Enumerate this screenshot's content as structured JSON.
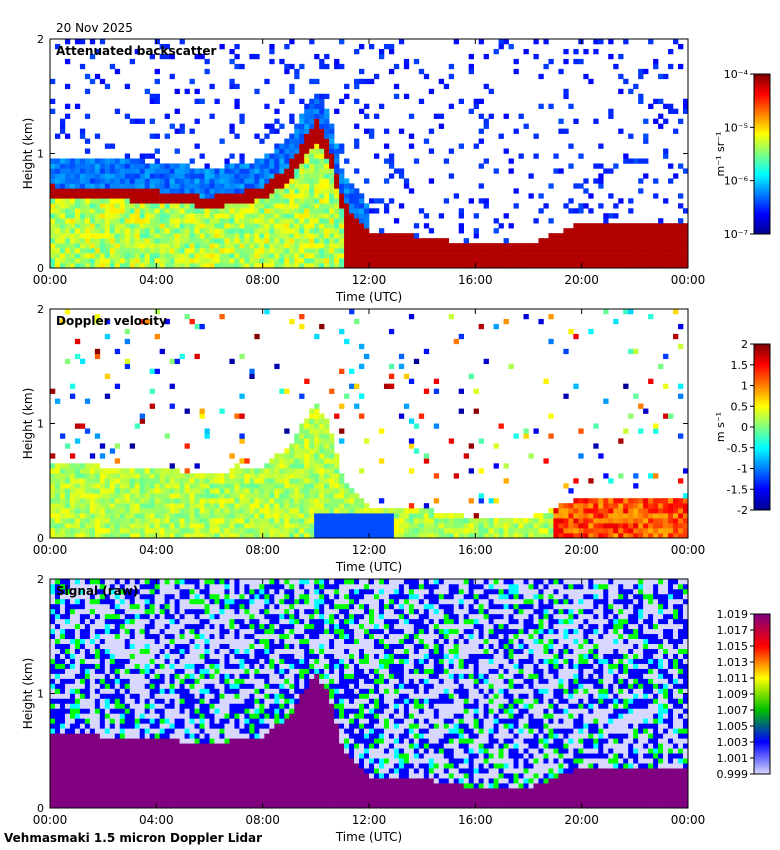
{
  "date": "20 Nov 2025",
  "footer": "Vehmasmaki 1.5 micron Doppler Lidar",
  "colors": {
    "jet": [
      "#00008f",
      "#0000ff",
      "#007fff",
      "#00ffff",
      "#7fff7f",
      "#ffff00",
      "#ff7f00",
      "#ff0000",
      "#7f0000"
    ],
    "colormap": [
      "#d8d8ff",
      "#0000ff",
      "#00c000",
      "#ffff00",
      "#ff0000",
      "#800080"
    ],
    "surface": "#800080"
  },
  "chart_data": [
    {
      "type": "heatmap",
      "title": "Attenuated backscatter",
      "xlabel": "Time (UTC)",
      "ylabel": "Height (km)",
      "xticks": [
        "00:00",
        "04:00",
        "08:00",
        "12:00",
        "16:00",
        "20:00",
        "00:00"
      ],
      "yticks": [
        "0",
        "1",
        "2"
      ],
      "xlim": [
        0,
        24
      ],
      "ylim": [
        0,
        2
      ],
      "colorbar": {
        "label": "m⁻¹ sr⁻¹",
        "ticks": [
          "10⁻⁴",
          "10⁻⁵",
          "10⁻⁶",
          "10⁻⁷"
        ],
        "scale": "log",
        "range": [
          1e-07,
          0.0001
        ]
      },
      "layer_top_km": [
        [
          0,
          0.72
        ],
        [
          2,
          0.7
        ],
        [
          4,
          0.68
        ],
        [
          6,
          0.62
        ],
        [
          8,
          0.7
        ],
        [
          9,
          0.9
        ],
        [
          10,
          1.3
        ],
        [
          10.5,
          1.1
        ],
        [
          11,
          0.6
        ],
        [
          12,
          0.3
        ],
        [
          14,
          0.28
        ],
        [
          16,
          0.2
        ],
        [
          18,
          0.2
        ],
        [
          20,
          0.4
        ],
        [
          24,
          0.4
        ]
      ]
    },
    {
      "type": "heatmap",
      "title": "Doppler velocity",
      "xlabel": "Time (UTC)",
      "ylabel": "Height (km)",
      "xticks": [
        "00:00",
        "04:00",
        "08:00",
        "12:00",
        "16:00",
        "20:00",
        "00:00"
      ],
      "yticks": [
        "0",
        "1",
        "2"
      ],
      "xlim": [
        0,
        24
      ],
      "ylim": [
        0,
        2
      ],
      "colorbar": {
        "label": "m s⁻¹",
        "ticks": [
          "2",
          "1.5",
          "1",
          "0.5",
          "0",
          "-0.5",
          "-1",
          "-1.5",
          "-2"
        ],
        "range": [
          -2,
          2
        ]
      }
    },
    {
      "type": "heatmap",
      "title": "Signal (raw)",
      "xlabel": "Time (UTC)",
      "ylabel": "Height (km)",
      "xticks": [
        "00:00",
        "04:00",
        "08:00",
        "12:00",
        "16:00",
        "20:00",
        "00:00"
      ],
      "yticks": [
        "0",
        "1",
        "2"
      ],
      "xlim": [
        0,
        24
      ],
      "ylim": [
        0,
        2
      ],
      "colorbar": {
        "label": "",
        "ticks": [
          "1.019",
          "1.017",
          "1.015",
          "1.013",
          "1.011",
          "1.009",
          "1.007",
          "1.005",
          "1.003",
          "1.001",
          "0.999"
        ],
        "range": [
          0.999,
          1.019
        ]
      }
    }
  ]
}
